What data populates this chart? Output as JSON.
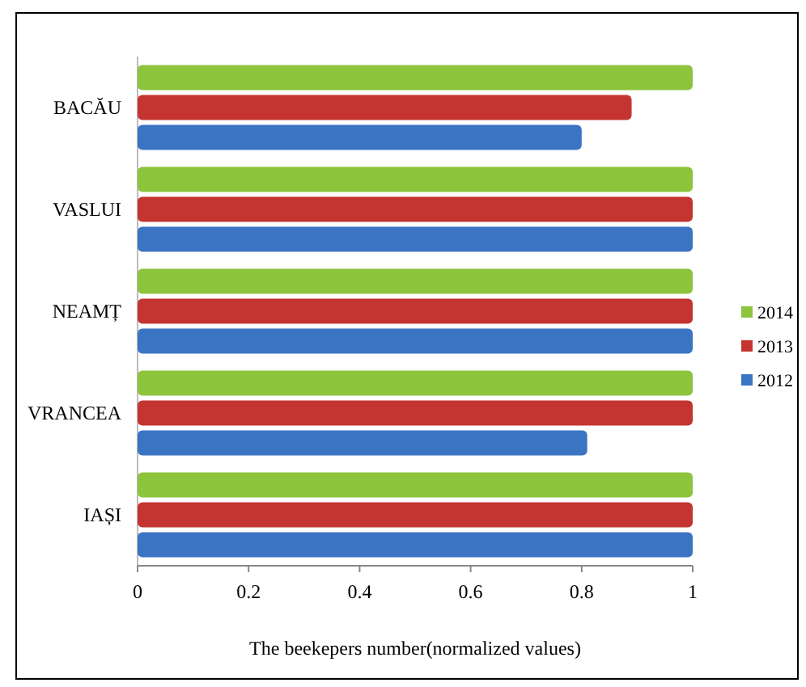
{
  "chart_data": {
    "type": "bar",
    "orientation": "horizontal",
    "xlabel": "The beekepers number(normalized values)",
    "categories": [
      "BACĂU",
      "VASLUI",
      "NEAMȚ",
      "VRANCEA",
      "IAȘI"
    ],
    "series": [
      {
        "name": "2014",
        "color": "#8cc43c",
        "values": [
          1,
          1,
          1,
          1,
          1
        ]
      },
      {
        "name": "2013",
        "color": "#c43430",
        "values": [
          0.89,
          1,
          1,
          1,
          1
        ]
      },
      {
        "name": "2012",
        "color": "#3c74c4",
        "values": [
          0.8,
          1,
          1,
          0.81,
          1
        ]
      }
    ],
    "xlim": [
      0,
      1
    ],
    "xticks": [
      0,
      0.2,
      0.4,
      0.6,
      0.8,
      1
    ],
    "legend": "right"
  }
}
